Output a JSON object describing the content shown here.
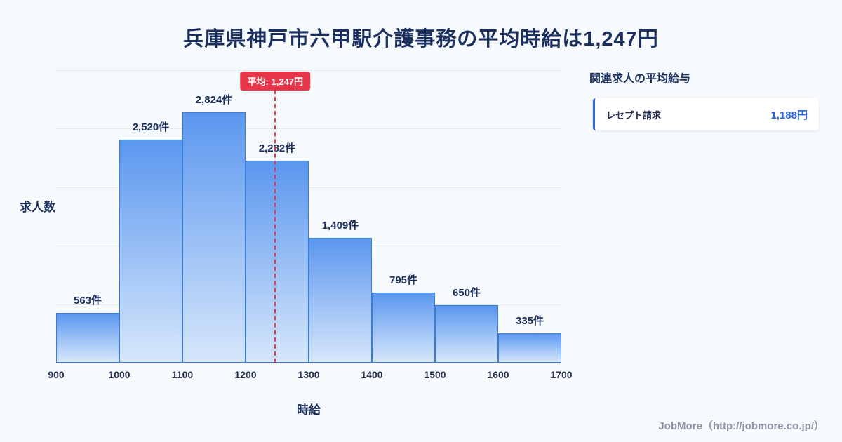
{
  "title": "兵庫県神戸市六甲駅介護事務の平均時給は1,247円",
  "chart_data": {
    "type": "bar",
    "categories": [
      "900",
      "1000",
      "1100",
      "1200",
      "1300",
      "1400",
      "1500",
      "1600",
      "1700"
    ],
    "values": [
      563,
      2520,
      2824,
      2282,
      1409,
      795,
      650,
      335
    ],
    "value_labels": [
      "563件",
      "2,520件",
      "2,824件",
      "2,282件",
      "1,409件",
      "795件",
      "650件",
      "335件"
    ],
    "title": "兵庫県神戸市六甲駅介護事務の平均時給は1,247円",
    "xlabel": "時給",
    "ylabel": "求人数",
    "ylim": [
      0,
      3300
    ],
    "x_range": [
      900,
      1700
    ],
    "grid": "horizontal",
    "average": 1247,
    "average_label": "平均: 1,247円"
  },
  "side_panel": {
    "heading": "関連求人の平均給与",
    "items": [
      {
        "label": "レセプト請求",
        "value": "1,188円"
      }
    ]
  },
  "footer": "JobMore（http://jobmore.co.jp/）",
  "colors": {
    "accent_red": "#e8354a",
    "bar_border": "#3a7bd5",
    "bar_top": "#5b97ef",
    "bar_bottom": "#d6e7fb",
    "navy": "#1b2f5e",
    "value_blue": "#2563eb",
    "grid": "#e4e9f0",
    "background": "#f7fafd",
    "footer_gray": "#8c95a6"
  }
}
